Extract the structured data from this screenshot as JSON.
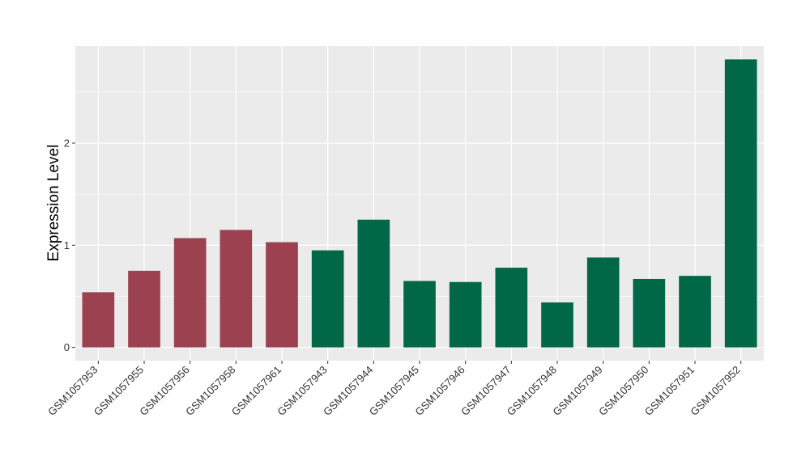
{
  "chart_data": {
    "type": "bar",
    "title": "",
    "xlabel": "",
    "ylabel": "Expression Level",
    "categories": [
      "GSM1057953",
      "GSM1057955",
      "GSM1057956",
      "GSM1057958",
      "GSM1057961",
      "GSM1057943",
      "GSM1057944",
      "GSM1057945",
      "GSM1057946",
      "GSM1057947",
      "GSM1057948",
      "GSM1057949",
      "GSM1057950",
      "GSM1057951",
      "GSM1057952"
    ],
    "values": [
      0.54,
      0.75,
      1.07,
      1.15,
      1.03,
      0.95,
      1.25,
      0.65,
      0.64,
      0.78,
      0.44,
      0.88,
      0.67,
      0.7,
      2.82
    ],
    "groups": [
      "a",
      "a",
      "a",
      "a",
      "a",
      "b",
      "b",
      "b",
      "b",
      "b",
      "b",
      "b",
      "b",
      "b",
      "b"
    ],
    "group_colors": {
      "a": "#9B4150",
      "b": "#006847"
    },
    "yticks": [
      0,
      1,
      2
    ],
    "ylim": [
      -0.13,
      2.95
    ],
    "grid": true,
    "panel_background": "#EBEBEB",
    "grid_color": "#FFFFFF"
  }
}
